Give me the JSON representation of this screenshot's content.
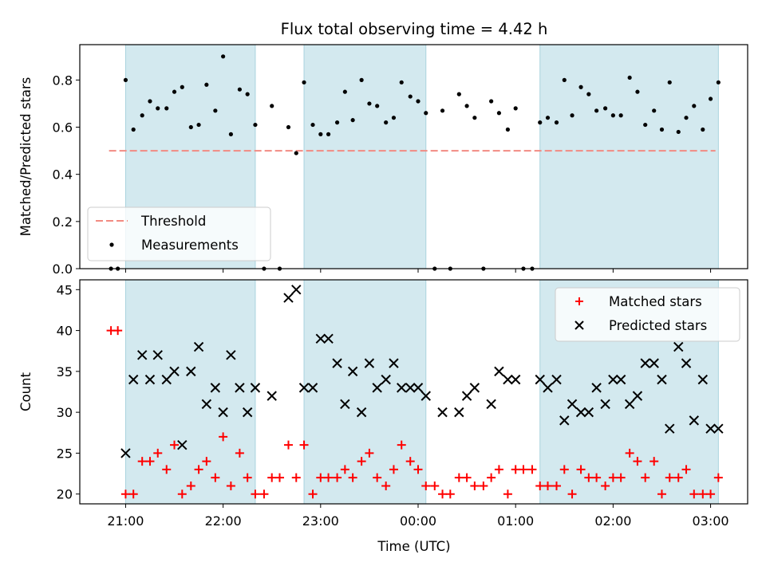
{
  "chart_data": {
    "title": "Flux total observing time = 4.42 h",
    "type": "scatter",
    "xlabel": "Time (UTC)",
    "x_unit": "hour since 21:00 UTC",
    "x_ticks": [
      {
        "v": 0,
        "label": "21:00"
      },
      {
        "v": 1,
        "label": "22:00"
      },
      {
        "v": 2,
        "label": "23:00"
      },
      {
        "v": 3,
        "label": "00:00"
      },
      {
        "v": 4,
        "label": "01:00"
      },
      {
        "v": 5,
        "label": "02:00"
      },
      {
        "v": 6,
        "label": "03:00"
      }
    ],
    "xlim": [
      -0.47,
      6.38
    ],
    "shaded_intervals": [
      [
        0.0,
        1.33
      ],
      [
        1.83,
        3.08
      ],
      [
        4.25,
        6.08
      ]
    ],
    "shade_color": "#d3e9ef",
    "panels": [
      {
        "ylabel": "Matched/Predicted stars",
        "ylim": [
          0,
          0.95
        ],
        "yticks": [
          {
            "v": 0,
            "label": "0.0"
          },
          {
            "v": 0.2,
            "label": "0.2"
          },
          {
            "v": 0.4,
            "label": "0.4"
          },
          {
            "v": 0.6,
            "label": "0.6"
          },
          {
            "v": 0.8,
            "label": "0.8"
          }
        ],
        "legend_position": "lower-left",
        "threshold": {
          "name": "Threshold",
          "y": 0.5,
          "x_range": [
            -0.17,
            6.05
          ],
          "color": "#f28b82"
        },
        "series": [
          {
            "name": "Measurements",
            "marker": "dot",
            "color": "#000000",
            "points": [
              [
                -0.15,
                0.0
              ],
              [
                -0.08,
                0.0
              ],
              [
                0.0,
                0.8
              ],
              [
                0.08,
                0.59
              ],
              [
                0.17,
                0.65
              ],
              [
                0.25,
                0.71
              ],
              [
                0.33,
                0.68
              ],
              [
                0.42,
                0.68
              ],
              [
                0.5,
                0.75
              ],
              [
                0.58,
                0.77
              ],
              [
                0.67,
                0.6
              ],
              [
                0.75,
                0.61
              ],
              [
                0.83,
                0.78
              ],
              [
                0.92,
                0.67
              ],
              [
                1.0,
                0.9
              ],
              [
                1.08,
                0.57
              ],
              [
                1.17,
                0.76
              ],
              [
                1.25,
                0.74
              ],
              [
                1.33,
                0.61
              ],
              [
                1.42,
                0.0
              ],
              [
                1.5,
                0.69
              ],
              [
                1.58,
                0.0
              ],
              [
                1.67,
                0.6
              ],
              [
                1.75,
                0.49
              ],
              [
                1.83,
                0.79
              ],
              [
                1.92,
                0.61
              ],
              [
                2.0,
                0.57
              ],
              [
                2.08,
                0.57
              ],
              [
                2.17,
                0.62
              ],
              [
                2.25,
                0.75
              ],
              [
                2.33,
                0.63
              ],
              [
                2.42,
                0.8
              ],
              [
                2.5,
                0.7
              ],
              [
                2.58,
                0.69
              ],
              [
                2.67,
                0.62
              ],
              [
                2.75,
                0.64
              ],
              [
                2.83,
                0.79
              ],
              [
                2.92,
                0.73
              ],
              [
                3.0,
                0.71
              ],
              [
                3.08,
                0.66
              ],
              [
                3.17,
                0.0
              ],
              [
                3.25,
                0.67
              ],
              [
                3.33,
                0.0
              ],
              [
                3.42,
                0.74
              ],
              [
                3.5,
                0.69
              ],
              [
                3.58,
                0.64
              ],
              [
                3.67,
                0.0
              ],
              [
                3.75,
                0.71
              ],
              [
                3.83,
                0.66
              ],
              [
                3.92,
                0.59
              ],
              [
                4.0,
                0.68
              ],
              [
                4.08,
                0.0
              ],
              [
                4.17,
                0.0
              ],
              [
                4.25,
                0.62
              ],
              [
                4.33,
                0.64
              ],
              [
                4.42,
                0.62
              ],
              [
                4.5,
                0.8
              ],
              [
                4.58,
                0.65
              ],
              [
                4.67,
                0.77
              ],
              [
                4.75,
                0.74
              ],
              [
                4.83,
                0.67
              ],
              [
                4.92,
                0.68
              ],
              [
                5.0,
                0.65
              ],
              [
                5.08,
                0.65
              ],
              [
                5.17,
                0.81
              ],
              [
                5.25,
                0.75
              ],
              [
                5.33,
                0.61
              ],
              [
                5.42,
                0.67
              ],
              [
                5.5,
                0.59
              ],
              [
                5.58,
                0.79
              ],
              [
                5.67,
                0.58
              ],
              [
                5.75,
                0.64
              ],
              [
                5.83,
                0.69
              ],
              [
                5.92,
                0.59
              ],
              [
                6.0,
                0.72
              ],
              [
                6.08,
                0.79
              ]
            ]
          }
        ]
      },
      {
        "ylabel": "Count",
        "ylim": [
          18.8,
          46.2
        ],
        "yticks": [
          {
            "v": 20,
            "label": "20"
          },
          {
            "v": 25,
            "label": "25"
          },
          {
            "v": 30,
            "label": "30"
          },
          {
            "v": 35,
            "label": "35"
          },
          {
            "v": 40,
            "label": "40"
          },
          {
            "v": 45,
            "label": "45"
          }
        ],
        "legend_position": "upper-right",
        "series": [
          {
            "name": "Matched stars",
            "marker": "plus",
            "color": "#ff0000",
            "points": [
              [
                -0.15,
                40
              ],
              [
                -0.08,
                40
              ],
              [
                0.0,
                20
              ],
              [
                0.08,
                20
              ],
              [
                0.17,
                24
              ],
              [
                0.25,
                24
              ],
              [
                0.33,
                25
              ],
              [
                0.42,
                23
              ],
              [
                0.5,
                26
              ],
              [
                0.58,
                20
              ],
              [
                0.67,
                21
              ],
              [
                0.75,
                23
              ],
              [
                0.83,
                24
              ],
              [
                0.92,
                22
              ],
              [
                1.0,
                27
              ],
              [
                1.08,
                21
              ],
              [
                1.17,
                25
              ],
              [
                1.25,
                22
              ],
              [
                1.33,
                20
              ],
              [
                1.42,
                20
              ],
              [
                1.5,
                22
              ],
              [
                1.58,
                22
              ],
              [
                1.67,
                26
              ],
              [
                1.75,
                22
              ],
              [
                1.83,
                26
              ],
              [
                1.92,
                20
              ],
              [
                2.0,
                22
              ],
              [
                2.08,
                22
              ],
              [
                2.17,
                22
              ],
              [
                2.25,
                23
              ],
              [
                2.33,
                22
              ],
              [
                2.42,
                24
              ],
              [
                2.5,
                25
              ],
              [
                2.58,
                22
              ],
              [
                2.67,
                21
              ],
              [
                2.75,
                23
              ],
              [
                2.83,
                26
              ],
              [
                2.92,
                24
              ],
              [
                3.0,
                23
              ],
              [
                3.08,
                21
              ],
              [
                3.17,
                21
              ],
              [
                3.25,
                20
              ],
              [
                3.33,
                20
              ],
              [
                3.42,
                22
              ],
              [
                3.5,
                22
              ],
              [
                3.58,
                21
              ],
              [
                3.67,
                21
              ],
              [
                3.75,
                22
              ],
              [
                3.83,
                23
              ],
              [
                3.92,
                20
              ],
              [
                4.0,
                23
              ],
              [
                4.08,
                23
              ],
              [
                4.17,
                23
              ],
              [
                4.25,
                21
              ],
              [
                4.33,
                21
              ],
              [
                4.42,
                21
              ],
              [
                4.5,
                23
              ],
              [
                4.58,
                20
              ],
              [
                4.67,
                23
              ],
              [
                4.75,
                22
              ],
              [
                4.83,
                22
              ],
              [
                4.92,
                21
              ],
              [
                5.0,
                22
              ],
              [
                5.08,
                22
              ],
              [
                5.17,
                25
              ],
              [
                5.25,
                24
              ],
              [
                5.33,
                22
              ],
              [
                5.42,
                24
              ],
              [
                5.5,
                20
              ],
              [
                5.58,
                22
              ],
              [
                5.67,
                22
              ],
              [
                5.75,
                23
              ],
              [
                5.83,
                20
              ],
              [
                5.92,
                20
              ],
              [
                6.0,
                20
              ],
              [
                6.08,
                22
              ]
            ]
          },
          {
            "name": "Predicted stars",
            "marker": "x",
            "color": "#000000",
            "points": [
              [
                0.0,
                25
              ],
              [
                0.08,
                34
              ],
              [
                0.17,
                37
              ],
              [
                0.25,
                34
              ],
              [
                0.33,
                37
              ],
              [
                0.42,
                34
              ],
              [
                0.5,
                35
              ],
              [
                0.58,
                26
              ],
              [
                0.67,
                35
              ],
              [
                0.75,
                38
              ],
              [
                0.83,
                31
              ],
              [
                0.92,
                33
              ],
              [
                1.0,
                30
              ],
              [
                1.08,
                37
              ],
              [
                1.17,
                33
              ],
              [
                1.25,
                30
              ],
              [
                1.33,
                33
              ],
              [
                1.5,
                32
              ],
              [
                1.67,
                44
              ],
              [
                1.75,
                45
              ],
              [
                1.83,
                33
              ],
              [
                1.92,
                33
              ],
              [
                2.0,
                39
              ],
              [
                2.08,
                39
              ],
              [
                2.17,
                36
              ],
              [
                2.25,
                31
              ],
              [
                2.33,
                35
              ],
              [
                2.42,
                30
              ],
              [
                2.5,
                36
              ],
              [
                2.58,
                33
              ],
              [
                2.67,
                34
              ],
              [
                2.75,
                36
              ],
              [
                2.83,
                33
              ],
              [
                2.92,
                33
              ],
              [
                3.0,
                33
              ],
              [
                3.08,
                32
              ],
              [
                3.25,
                30
              ],
              [
                3.42,
                30
              ],
              [
                3.5,
                32
              ],
              [
                3.58,
                33
              ],
              [
                3.75,
                31
              ],
              [
                3.83,
                35
              ],
              [
                3.92,
                34
              ],
              [
                4.0,
                34
              ],
              [
                4.25,
                34
              ],
              [
                4.33,
                33
              ],
              [
                4.42,
                34
              ],
              [
                4.5,
                29
              ],
              [
                4.58,
                31
              ],
              [
                4.67,
                30
              ],
              [
                4.75,
                30
              ],
              [
                4.83,
                33
              ],
              [
                4.92,
                31
              ],
              [
                5.0,
                34
              ],
              [
                5.08,
                34
              ],
              [
                5.17,
                31
              ],
              [
                5.25,
                32
              ],
              [
                5.33,
                36
              ],
              [
                5.42,
                36
              ],
              [
                5.5,
                34
              ],
              [
                5.58,
                28
              ],
              [
                5.67,
                38
              ],
              [
                5.75,
                36
              ],
              [
                5.83,
                29
              ],
              [
                5.92,
                34
              ],
              [
                6.0,
                28
              ],
              [
                6.08,
                28
              ]
            ]
          }
        ]
      }
    ]
  }
}
